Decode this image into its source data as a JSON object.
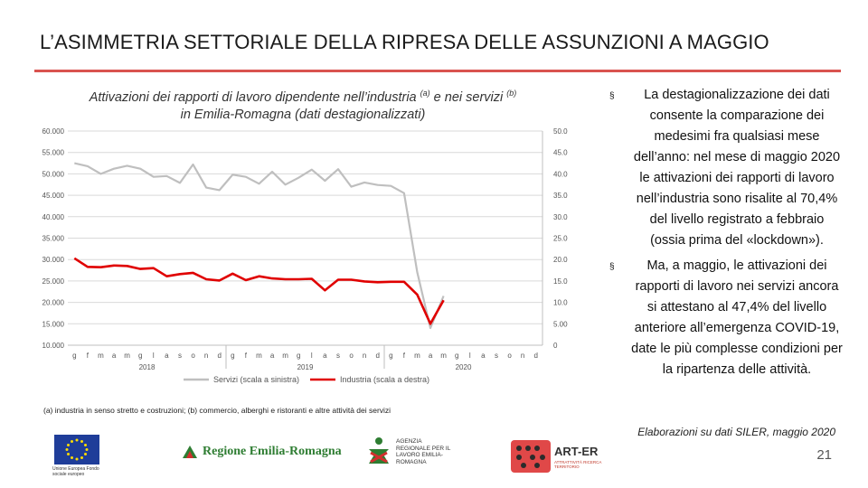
{
  "slide": {
    "title": "L’ASIMMETRIA SETTORIALE DELLA RIPRESA DELLE ASSUNZIONI A MAGGIO",
    "chart_title_line1": "Attivazioni dei rapporti di lavoro dipendente nell’industria",
    "chart_title_sup_a": "(a)",
    "chart_title_mid": " e nei servizi ",
    "chart_title_sup_b": "(b)",
    "chart_title_line2": "in Emilia-Romagna (dati destagionalizzati)",
    "footnote": "(a) industria in senso stretto e costruzioni; (b) commercio, alberghi e ristoranti e altre attività dei servizi",
    "bullets": [
      "La destagionalizzazione dei dati consente la comparazione dei medesimi fra qualsiasi mese dell’anno: nel mese di maggio 2020 le attivazioni dei rapporti di lavoro nell’industria sono risalite al 70,4% del livello registrato a febbraio (ossia prima del «lockdown»).",
      "Ma, a maggio, le attivazioni dei rapporti di lavoro nei servizi ancora si attestano al 47,4% del livello anteriore all’emergenza COVID-19, date le più complesse condizioni per la ripartenza delle attività."
    ],
    "bullet_mark": "§",
    "source": "Elaborazioni su dati SILER, maggio 2020",
    "page_number": "21"
  },
  "logos": {
    "eu_caption": "Unione Europea Fondo sociale europeo",
    "region_name": "Regione Emilia-Romagna",
    "agency_name": "AGENZIA REGIONALE PER IL LAVORO EMILIA-ROMAGNA",
    "arter_name": "ART-ER",
    "arter_sub": "ATTRATTIVITÀ RICERCA TERRITORIO"
  },
  "colors": {
    "accent_rule": "#d9534f",
    "services": "#bfbfbf",
    "industry": "#e00000",
    "grid": "#d9d9d9"
  },
  "chart_data": {
    "type": "line",
    "categories": [
      "g",
      "f",
      "m",
      "a",
      "m",
      "g",
      "l",
      "a",
      "s",
      "o",
      "n",
      "d",
      "g",
      "f",
      "m",
      "a",
      "m",
      "g",
      "l",
      "a",
      "s",
      "o",
      "n",
      "d",
      "g",
      "f",
      "m",
      "a",
      "m",
      "g",
      "l",
      "a",
      "s",
      "o",
      "n",
      "d"
    ],
    "year_labels": [
      "2018",
      "2019",
      "2020"
    ],
    "series": [
      {
        "name": "Servizi (scala a sinistra)",
        "axis": "left",
        "values": [
          52500,
          51800,
          50000,
          51200,
          51900,
          51200,
          49300,
          49500,
          47900,
          52200,
          46800,
          46200,
          49800,
          49300,
          47700,
          50500,
          47500,
          49100,
          51000,
          48400,
          51100,
          47000,
          48000,
          47400,
          47200,
          45500,
          27000,
          14000,
          21500,
          null,
          null,
          null,
          null,
          null,
          null,
          null
        ]
      },
      {
        "name": "Industria (scala a destra)",
        "axis": "right",
        "values": [
          20300,
          18300,
          18200,
          18600,
          18500,
          17800,
          18000,
          16100,
          16600,
          16900,
          15400,
          15100,
          16700,
          15200,
          16100,
          15600,
          15400,
          15400,
          15500,
          12800,
          15300,
          15300,
          14900,
          14700,
          14800,
          14800,
          11800,
          5000,
          10500,
          null,
          null,
          null,
          null,
          null,
          null,
          null
        ]
      }
    ],
    "y_left": {
      "min": 10000,
      "max": 60000,
      "ticks": [
        "10.000",
        "15.000",
        "20.000",
        "25.000",
        "30.000",
        "35.000",
        "40.000",
        "45.000",
        "50.000",
        "55.000",
        "60.000"
      ]
    },
    "y_right": {
      "min": 0,
      "max": 50000,
      "ticks": [
        "0",
        "5.000",
        "10.000",
        "15.000",
        "20.000",
        "25.000",
        "30.000",
        "35.000",
        "40.000",
        "45.000",
        "50.000"
      ]
    },
    "legend": [
      "Servizi (scala a sinistra)",
      "Industria (scala a destra)"
    ],
    "legend_position": "bottom",
    "grid": true
  }
}
